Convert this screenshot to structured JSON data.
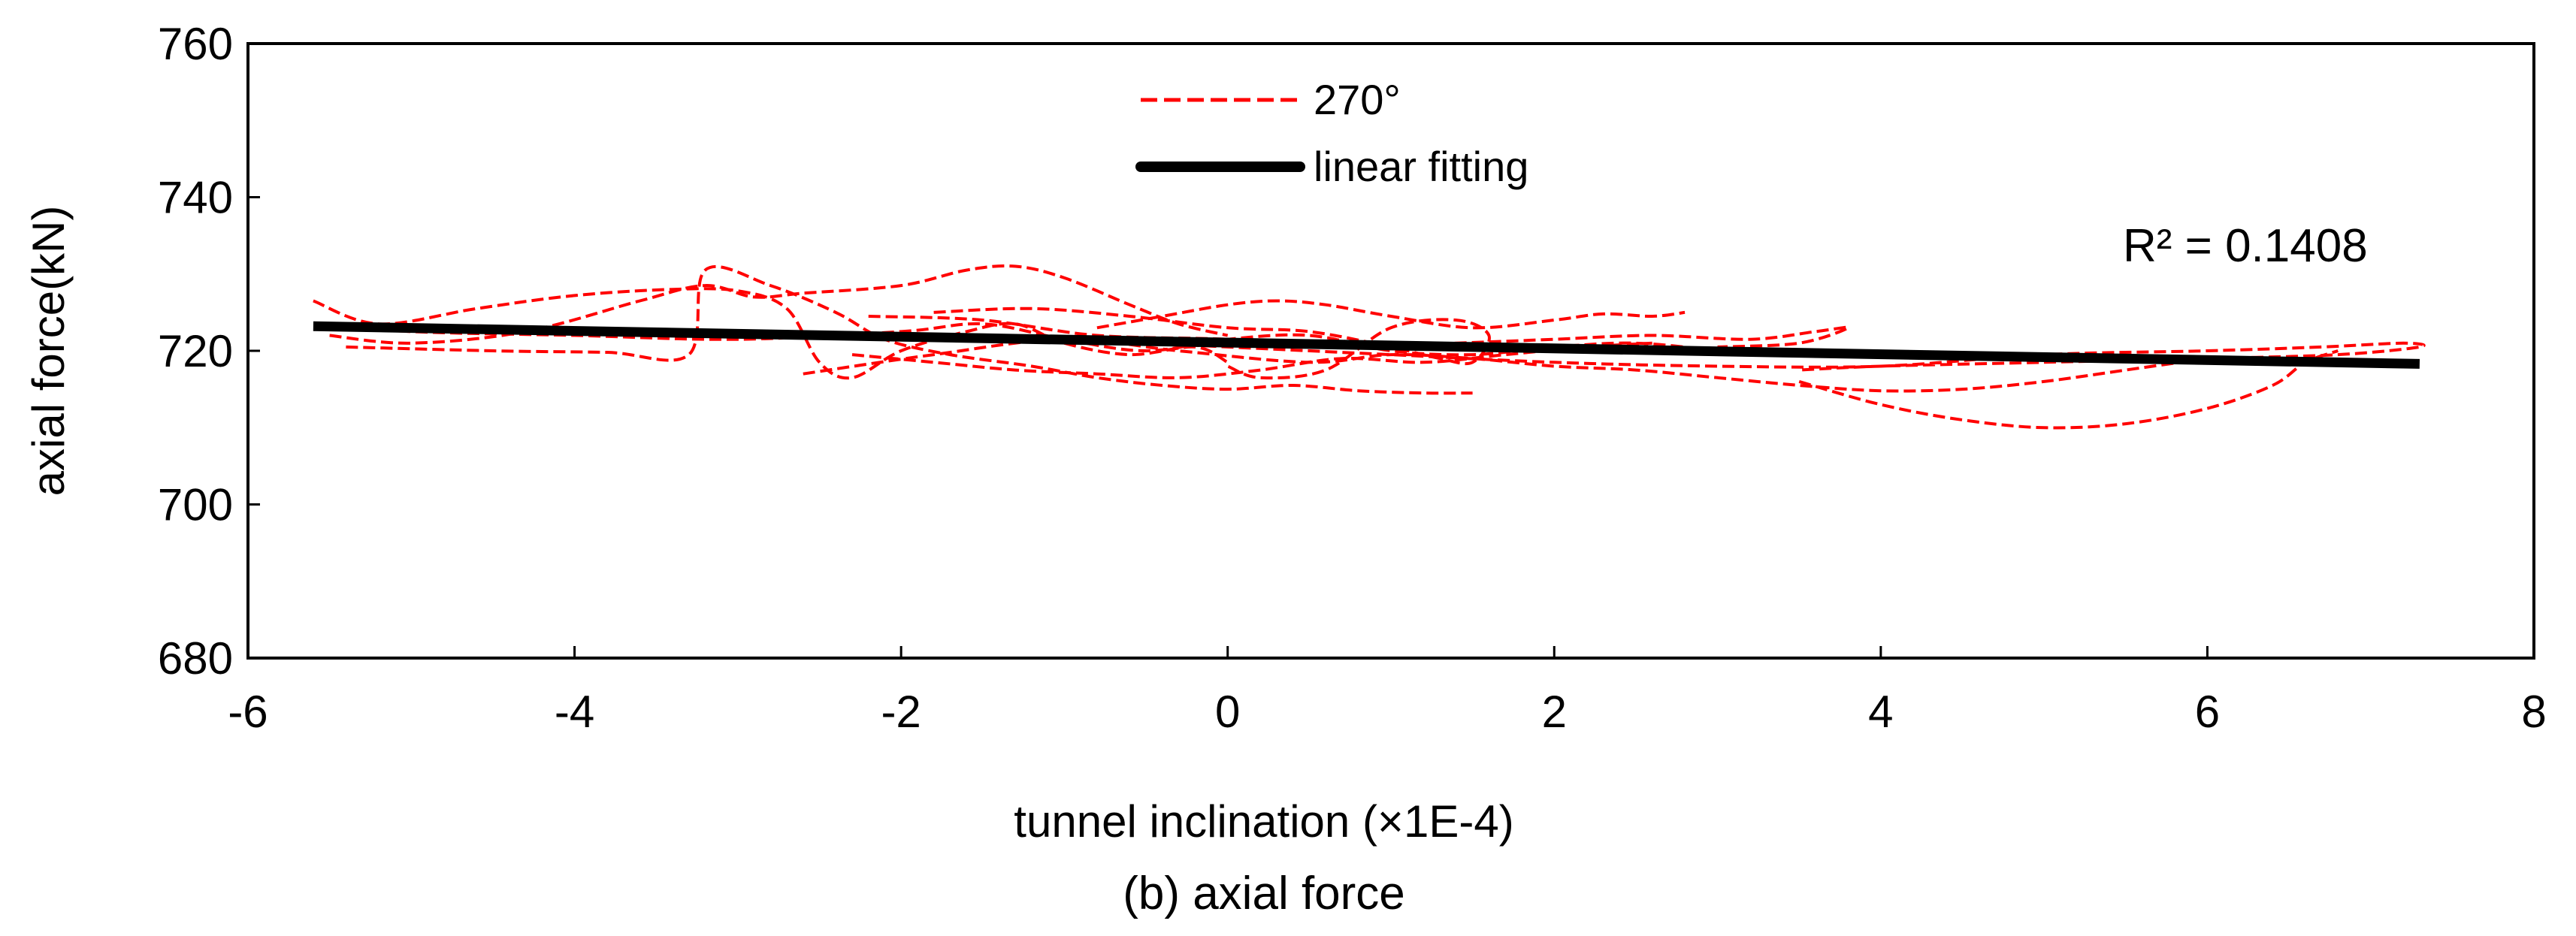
{
  "chart_data": {
    "type": "line",
    "title": "",
    "caption": "(b)  axial force",
    "xlabel": "tunnel inclination  (×1E-4)",
    "ylabel": "axial force(kN)",
    "xlim": [
      -6,
      8
    ],
    "ylim": [
      680,
      760
    ],
    "x_ticks": [
      -6,
      -4,
      -2,
      0,
      2,
      4,
      6,
      8
    ],
    "x_tick_labels": [
      "-6",
      "-4",
      "-2",
      "0",
      "2",
      "4",
      "6",
      "8"
    ],
    "y_ticks": [
      680,
      700,
      720,
      740,
      760
    ],
    "y_tick_labels": [
      "680",
      "700",
      "720",
      "740",
      "760"
    ],
    "grid": false,
    "legend": {
      "position": "top-center",
      "entries": [
        {
          "label": "270°",
          "style": "dashed",
          "color": "#ff0000"
        },
        {
          "label": "linear fitting",
          "style": "solid",
          "color": "#000000"
        }
      ]
    },
    "annotations": [
      {
        "text": "R² = 0.1408",
        "x": 6.8,
        "y": 734.5
      }
    ],
    "series": [
      {
        "name": "270°",
        "style": "dashed",
        "color": "#ff0000",
        "segments": [
          {
            "x": [
              -5.6,
              -5.2,
              -4.6,
              -4.0,
              -3.4,
              -3.0,
              -2.7,
              -2.5,
              -2.3,
              -2.0,
              -1.6,
              -1.3,
              -1.0,
              -0.6,
              -0.2,
              0.0
            ],
            "y": [
              726.5,
              723.5,
              725.5,
              727.2,
              728.0,
              727.8,
              725.5,
              718.5,
              716.5,
              720.0,
              722.5,
              723.5,
              721.0,
              719.5,
              720.5,
              718.5
            ]
          },
          {
            "x": [
              -5.5,
              -5.0,
              -4.3,
              -3.6,
              -3.2,
              -2.9,
              -2.6,
              -2.0,
              -1.6,
              -1.3,
              -1.0,
              -0.6,
              -0.3,
              0.0
            ],
            "y": [
              722.0,
              721.0,
              722.5,
              726.5,
              728.5,
              727.0,
              727.5,
              728.5,
              730.5,
              731.0,
              729.5,
              726.0,
              723.5,
              722.0
            ]
          },
          {
            "x": [
              -5.4,
              -4.5,
              -3.8,
              -3.3,
              -3.2,
              -2.8,
              -2.4,
              -2.1,
              -1.7,
              -1.2,
              -0.8,
              -0.4,
              0.0,
              0.4,
              0.8,
              1.2,
              1.5
            ],
            "y": [
              720.5,
              720.0,
              719.8,
              719.5,
              730.5,
              728.5,
              725.0,
              721.5,
              719.5,
              718.0,
              716.5,
              715.5,
              715.0,
              715.5,
              714.8,
              714.5,
              714.5
            ]
          },
          {
            "x": [
              -0.8,
              -0.4,
              0.0,
              0.3,
              0.6,
              1.0,
              1.5,
              2.0,
              2.3,
              2.6,
              2.8
            ],
            "y": [
              723.0,
              724.5,
              726.0,
              726.5,
              726.0,
              724.5,
              723.0,
              724.0,
              724.8,
              724.5,
              725.0
            ]
          },
          {
            "x": [
              -2.2,
              -1.5,
              -0.8,
              0.0,
              0.7,
              1.4,
              2.0,
              2.6,
              3.2,
              3.6,
              3.8,
              3.5,
              3.0
            ],
            "y": [
              724.5,
              724.0,
              722.0,
              721.5,
              720.5,
              721.0,
              721.5,
              722.0,
              721.5,
              722.5,
              723.0,
              721.0,
              720.5
            ]
          },
          {
            "x": [
              -3.0,
              -2.0,
              -1.0,
              0.0,
              1.0,
              2.0,
              3.0,
              4.0,
              5.0,
              6.0,
              6.7,
              7.2,
              7.3,
              6.8,
              6.0,
              5.0,
              4.0,
              3.5
            ],
            "y": [
              722.5,
              722.0,
              721.5,
              720.5,
              719.5,
              718.5,
              718.0,
              718.0,
              719.5,
              720.0,
              720.5,
              721.0,
              720.5,
              719.5,
              719.0,
              718.5,
              718.0,
              717.5
            ]
          },
          {
            "x": [
              3.5,
              4.0,
              4.5,
              5.0,
              5.5,
              6.0,
              6.4,
              6.6,
              6.8
            ],
            "y": [
              716.0,
              713.0,
              711.0,
              710.0,
              710.5,
              712.5,
              715.5,
              718.5,
              720.0
            ]
          },
          {
            "x": [
              -2.6,
              -1.8,
              -1.0,
              -0.3,
              0.5,
              1.0,
              1.5,
              2.0,
              2.5,
              3.0,
              3.5,
              4.0,
              4.5,
              5.0,
              5.5,
              6.0
            ],
            "y": [
              717.0,
              719.5,
              721.5,
              720.0,
              718.5,
              719.5,
              719.0,
              718.0,
              717.5,
              716.5,
              715.5,
              714.8,
              715.0,
              716.0,
              717.5,
              719.0
            ]
          },
          {
            "x": [
              -1.8,
              -1.2,
              -0.6,
              0.0,
              0.5,
              1.0,
              1.3,
              1.5,
              1.6,
              1.4,
              1.0,
              0.6,
              0.2,
              0.0
            ],
            "y": [
              725.0,
              725.5,
              724.5,
              723.0,
              722.5,
              720.5,
              719.0,
              718.5,
              722.0,
              724.0,
              723.0,
              717.5,
              716.5,
              718.0
            ]
          },
          {
            "x": [
              -5.5,
              -5.0,
              -4.0,
              -3.0,
              -2.0,
              -1.5,
              -1.0,
              -0.5,
              0.0,
              0.5,
              1.0,
              1.5,
              2.0,
              2.5,
              3.0
            ],
            "y": [
              723.5,
              722.5,
              722.0,
              721.5,
              722.5,
              723.5,
              721.5,
              720.0,
              721.5,
              722.0,
              720.0,
              719.5,
              720.5,
              721.0,
              720.0
            ]
          },
          {
            "x": [
              -2.3,
              -1.8,
              -1.3,
              -0.8,
              -0.3,
              0.2,
              0.7,
              1.2,
              1.7,
              2.2,
              2.6
            ],
            "y": [
              719.5,
              718.5,
              717.5,
              717.0,
              716.5,
              717.5,
              719.0,
              718.5,
              719.5,
              720.5,
              721.0
            ]
          }
        ]
      },
      {
        "name": "linear fitting",
        "style": "solid",
        "color": "#000000",
        "x": [
          -5.6,
          7.3
        ],
        "y": [
          723.2,
          718.3
        ]
      }
    ]
  }
}
